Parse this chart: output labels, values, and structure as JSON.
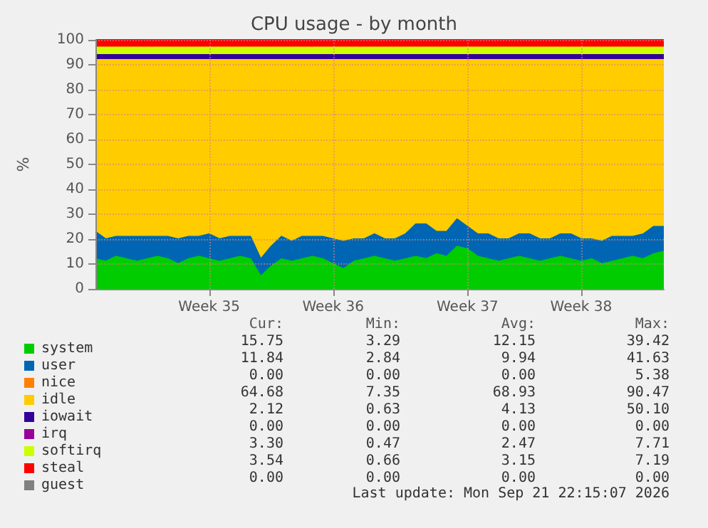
{
  "chart_data": {
    "type": "area",
    "title": "CPU usage - by month",
    "ylabel": "%",
    "stacked": true,
    "marker": "none",
    "grid": true,
    "legend": "bottom",
    "ylim": [
      0,
      100
    ],
    "yticks": [
      0,
      10,
      20,
      30,
      40,
      50,
      60,
      70,
      80,
      90,
      100
    ],
    "categories": [
      null,
      null,
      null,
      null,
      null,
      null,
      null,
      null,
      null,
      null,
      null,
      "Week 35",
      null,
      null,
      null,
      null,
      null,
      null,
      null,
      null,
      null,
      null,
      null,
      "Week 36",
      null,
      null,
      null,
      null,
      null,
      null,
      null,
      null,
      null,
      null,
      null,
      null,
      "Week 37",
      null,
      null,
      null,
      null,
      null,
      null,
      null,
      null,
      null,
      null,
      "Week 38",
      null,
      null,
      null,
      null,
      null,
      null,
      null,
      null
    ],
    "series": [
      {
        "name": "system",
        "color": "#00cc00",
        "values": [
          12,
          11,
          13,
          12,
          11,
          12,
          13,
          12,
          10,
          12,
          13,
          12,
          11,
          12,
          13,
          12,
          5,
          9,
          12,
          11,
          12,
          13,
          12,
          10,
          8,
          11,
          12,
          13,
          12,
          11,
          12,
          13,
          12,
          14,
          13,
          17,
          16,
          13,
          12,
          11,
          12,
          13,
          12,
          11,
          12,
          13,
          12,
          11,
          12,
          10,
          11,
          12,
          13,
          12,
          14,
          15
        ]
      },
      {
        "name": "user",
        "color": "#0066b3",
        "values": [
          11,
          9,
          8,
          9,
          10,
          9,
          8,
          9,
          10,
          9,
          8,
          10,
          9,
          9,
          8,
          9,
          7,
          8,
          9,
          8,
          9,
          8,
          9,
          10,
          11,
          9,
          8,
          9,
          8,
          9,
          10,
          13,
          14,
          9,
          10,
          11,
          9,
          9,
          10,
          9,
          8,
          9,
          10,
          9,
          8,
          9,
          10,
          9,
          8,
          9,
          10,
          9,
          8,
          10,
          11,
          10
        ]
      },
      {
        "name": "nice",
        "color": "#ff8000",
        "values": [
          null,
          null,
          null,
          null,
          null,
          null,
          null,
          null,
          null,
          null,
          null,
          null,
          null,
          null,
          null,
          null,
          null,
          null,
          null,
          null,
          null,
          null,
          null,
          null,
          null,
          null,
          null,
          null,
          null,
          null,
          null,
          null,
          null,
          null,
          null,
          null,
          null,
          null,
          null,
          null,
          null,
          null,
          null,
          null,
          null,
          null,
          null,
          null,
          null,
          null,
          null,
          null,
          null,
          null,
          null,
          null
        ]
      },
      {
        "name": "idle",
        "color": "#ffcc00",
        "values": [
          69,
          72,
          71,
          71,
          71,
          71,
          71,
          71,
          72,
          71,
          71,
          70,
          72,
          71,
          71,
          71,
          80,
          75,
          71,
          73,
          71,
          71,
          71,
          72,
          73,
          72,
          72,
          70,
          72,
          72,
          70,
          66,
          66,
          69,
          69,
          64,
          67,
          70,
          70,
          72,
          72,
          70,
          70,
          72,
          72,
          70,
          70,
          72,
          72,
          73,
          71,
          71,
          71,
          70,
          67,
          67
        ]
      },
      {
        "name": "iowait",
        "color": "#330099",
        "values": [
          2,
          2,
          2,
          2,
          2,
          2,
          2,
          2,
          2,
          2,
          2,
          2,
          2,
          2,
          2,
          2,
          2,
          2,
          2,
          2,
          2,
          2,
          2,
          2,
          2,
          2,
          2,
          2,
          2,
          2,
          2,
          2,
          2,
          2,
          2,
          2,
          2,
          2,
          2,
          2,
          2,
          2,
          2,
          2,
          2,
          2,
          2,
          2,
          2,
          2,
          2,
          2,
          2,
          2,
          2,
          2
        ]
      },
      {
        "name": "irq",
        "color": "#990099",
        "values": [
          null,
          null,
          null,
          null,
          null,
          null,
          null,
          null,
          null,
          null,
          null,
          null,
          null,
          null,
          null,
          null,
          null,
          null,
          null,
          null,
          null,
          null,
          null,
          null,
          null,
          null,
          null,
          null,
          null,
          null,
          null,
          null,
          null,
          null,
          null,
          null,
          null,
          null,
          null,
          null,
          null,
          null,
          null,
          null,
          null,
          null,
          null,
          null,
          null,
          null,
          null,
          null,
          null,
          null,
          null,
          null
        ]
      },
      {
        "name": "softirq",
        "color": "#ccff00",
        "values": [
          3,
          3,
          3,
          3,
          3,
          3,
          3,
          3,
          3,
          3,
          3,
          3,
          3,
          3,
          3,
          3,
          3,
          3,
          3,
          3,
          3,
          3,
          3,
          3,
          3,
          3,
          3,
          3,
          3,
          3,
          3,
          3,
          3,
          3,
          3,
          3,
          3,
          3,
          3,
          3,
          3,
          3,
          3,
          3,
          3,
          3,
          3,
          3,
          3,
          3,
          3,
          3,
          3,
          3,
          3,
          3
        ]
      },
      {
        "name": "steal",
        "color": "#ff0000",
        "values": [
          3,
          3,
          3,
          3,
          3,
          3,
          3,
          3,
          3,
          3,
          3,
          3,
          3,
          3,
          3,
          3,
          3,
          3,
          3,
          3,
          3,
          3,
          3,
          3,
          3,
          3,
          3,
          3,
          3,
          3,
          3,
          3,
          3,
          3,
          3,
          3,
          3,
          3,
          3,
          3,
          3,
          3,
          3,
          3,
          3,
          3,
          3,
          3,
          3,
          3,
          3,
          3,
          3,
          3,
          3,
          3
        ]
      },
      {
        "name": "guest",
        "color": "#808080",
        "values": [
          null,
          null,
          null,
          null,
          null,
          null,
          null,
          null,
          null,
          null,
          null,
          null,
          null,
          null,
          null,
          null,
          null,
          null,
          null,
          null,
          null,
          null,
          null,
          null,
          null,
          null,
          null,
          null,
          null,
          null,
          null,
          null,
          null,
          null,
          null,
          null,
          null,
          null,
          null,
          null,
          null,
          null,
          null,
          null,
          null,
          null,
          null,
          null,
          null,
          null,
          null,
          null,
          null,
          null,
          null,
          null
        ]
      }
    ],
    "annotations": [
      "Cur:",
      "Min:",
      "Avg:",
      "Max:",
      "15.75",
      "3.29",
      "12.15",
      "39.42",
      "11.84",
      "2.84",
      "9.94",
      "41.63",
      "0.00",
      "0.00",
      "0.00",
      "5.38",
      "64.68",
      "7.35",
      "68.93",
      "90.47",
      "2.12",
      "0.63",
      "4.13",
      "50.10",
      "0.00",
      "0.00",
      "0.00",
      "0.00",
      "3.30",
      "0.47",
      "2.47",
      "7.71",
      "3.54",
      "0.66",
      "3.15",
      "7.19",
      "0.00",
      "0.00",
      "0.00",
      "0.00",
      "Last update: Mon Sep 21 22:15:07 2026"
    ]
  }
}
